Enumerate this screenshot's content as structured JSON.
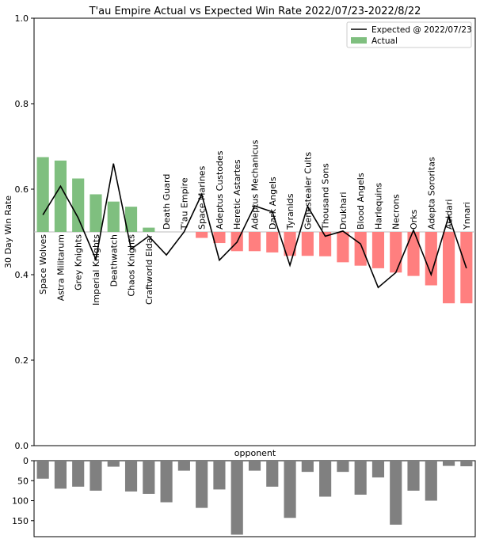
{
  "chart_data": [
    {
      "type": "bar",
      "title": "T'au Empire Actual vs Expected Win Rate 2022/07/23-2022/8/22",
      "ylabel": "30 Day Win Rate",
      "xlabel": "",
      "ylim": [
        0.0,
        1.0
      ],
      "yticks": [
        "0.0",
        "0.2",
        "0.4",
        "0.6",
        "0.8",
        "1.0"
      ],
      "baseline": 0.5,
      "legend_position": "top-right",
      "grid": false,
      "categories": [
        "Space Wolves",
        "Astra Militarum",
        "Grey Knights",
        "Imperial Knights",
        "Deathwatch",
        "Chaos Knights",
        "Craftworld Eldar",
        "Death Guard",
        "T'au Empire",
        "Space Marines",
        "Adeptus Custodes",
        "Heretic Astartes",
        "Adeptus Mechanicus",
        "Dark Angels",
        "Tyranids",
        "Genestealer Cults",
        "Thousand Sons",
        "Drukhari",
        "Blood Angels",
        "Harlequins",
        "Necrons",
        "Orks",
        "Adepta Sororitas",
        "Aeldari",
        "Ynnari"
      ],
      "series": [
        {
          "name": "Actual",
          "kind": "bar",
          "colors": {
            "above": "#7fbf7f",
            "below": "#ff7f7f"
          },
          "values": [
            0.675,
            0.667,
            0.625,
            0.588,
            0.571,
            0.559,
            0.51,
            0.5,
            0.5,
            0.486,
            0.474,
            0.455,
            0.455,
            0.452,
            0.444,
            0.444,
            0.443,
            0.429,
            0.421,
            0.415,
            0.405,
            0.397,
            0.375,
            0.333,
            0.333
          ]
        },
        {
          "name": "Expected @ 2022/07/23",
          "kind": "line",
          "color": "#000000",
          "values": [
            0.54,
            0.607,
            0.533,
            0.436,
            0.66,
            0.46,
            0.49,
            0.446,
            0.5,
            0.588,
            0.434,
            0.476,
            0.561,
            0.547,
            0.422,
            0.56,
            0.49,
            0.502,
            0.472,
            0.37,
            0.405,
            0.504,
            0.4,
            0.537,
            0.415
          ]
        }
      ]
    },
    {
      "type": "bar",
      "title": "opponent",
      "ylim": [
        0,
        190
      ],
      "yticks": [
        "0",
        "50",
        "100",
        "150"
      ],
      "inverted": true,
      "color": "#808080",
      "values": [
        45,
        70,
        65,
        75,
        15,
        77,
        83,
        104,
        25,
        118,
        72,
        185,
        25,
        65,
        143,
        28,
        90,
        28,
        85,
        42,
        160,
        75,
        100,
        13,
        14
      ]
    }
  ]
}
